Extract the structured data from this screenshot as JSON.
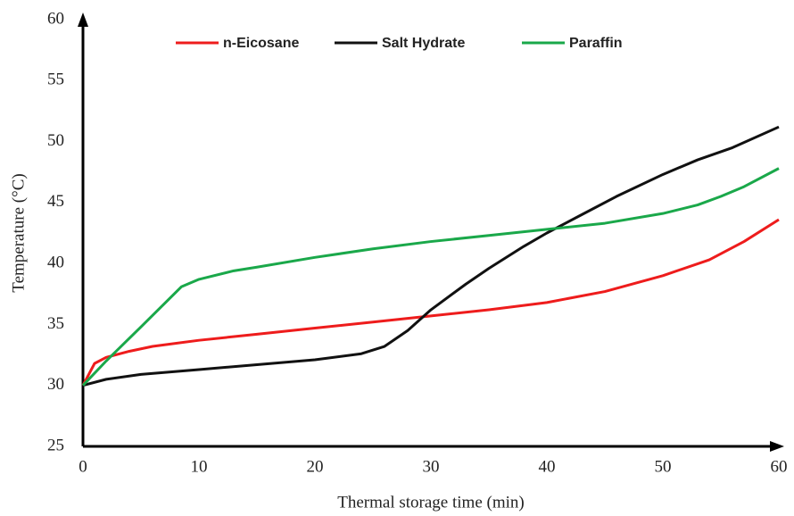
{
  "chart_data": {
    "type": "line",
    "x_label": "Thermal storage time (min)",
    "y_label": "Temperature (°C)",
    "xlim": [
      0,
      60
    ],
    "xticks": [
      0,
      10,
      20,
      30,
      40,
      50,
      60
    ],
    "ylim": [
      25,
      60
    ],
    "yticks": [
      25,
      30,
      35,
      40,
      45,
      50,
      55,
      60
    ],
    "series": [
      {
        "name": "n-Eicosane",
        "color": "#ee1c1c",
        "x": [
          0,
          1,
          2,
          4,
          6,
          10,
          15,
          20,
          25,
          30,
          35,
          40,
          45,
          50,
          54,
          57,
          60
        ],
        "values": [
          30,
          31.8,
          32.3,
          32.8,
          33.2,
          33.7,
          34.2,
          34.7,
          35.2,
          35.7,
          36.2,
          36.8,
          37.7,
          39.0,
          40.3,
          41.8,
          43.6
        ]
      },
      {
        "name": "Salt Hydrate",
        "color": "#111111",
        "x": [
          0,
          2,
          5,
          10,
          15,
          20,
          24,
          26,
          28,
          30,
          33,
          35,
          38,
          40,
          43,
          46,
          50,
          53,
          56,
          60
        ],
        "values": [
          30,
          30.5,
          30.9,
          31.3,
          31.7,
          32.1,
          32.6,
          33.2,
          34.5,
          36.2,
          38.3,
          39.6,
          41.4,
          42.5,
          44.0,
          45.5,
          47.3,
          48.5,
          49.5,
          51.2
        ]
      },
      {
        "name": "Paraffin",
        "color": "#1aa84a",
        "x": [
          0,
          2,
          5,
          8.5,
          10,
          13,
          15,
          20,
          25,
          30,
          35,
          40,
          45,
          50,
          53,
          55,
          57,
          60
        ],
        "values": [
          30,
          32,
          34.8,
          38.1,
          38.7,
          39.4,
          39.7,
          40.5,
          41.2,
          41.8,
          42.3,
          42.8,
          43.3,
          44.1,
          44.8,
          45.5,
          46.3,
          47.8
        ]
      }
    ]
  }
}
